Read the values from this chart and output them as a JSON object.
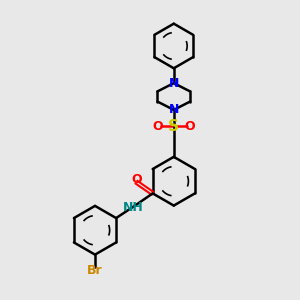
{
  "background_color": "#e8e8e8",
  "bond_color": "#000000",
  "N_color": "#0000ff",
  "O_color": "#ff0000",
  "S_color": "#cccc00",
  "Br_color": "#cc8800",
  "NH_color": "#008888",
  "figsize": [
    3.0,
    3.0
  ],
  "dpi": 100,
  "xlim": [
    0,
    10
  ],
  "ylim": [
    0,
    10
  ]
}
